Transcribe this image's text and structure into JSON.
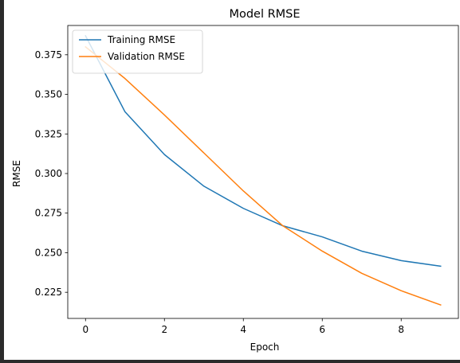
{
  "chart_data": {
    "type": "line",
    "title": "Model RMSE",
    "xlabel": "Epoch",
    "ylabel": "RMSE",
    "x": [
      0,
      1,
      2,
      3,
      4,
      5,
      6,
      7,
      8,
      9
    ],
    "xlim": [
      -0.45,
      9.45
    ],
    "ylim": [
      0.2085,
      0.3935
    ],
    "xticks": [
      0,
      2,
      4,
      6,
      8
    ],
    "yticks": [
      0.225,
      0.25,
      0.275,
      0.3,
      0.325,
      0.35,
      0.375
    ],
    "ytick_labels": [
      "0.225",
      "0.250",
      "0.275",
      "0.300",
      "0.325",
      "0.350",
      "0.375"
    ],
    "grid": false,
    "legend_position": "upper left",
    "series": [
      {
        "name": "Training RMSE",
        "color": "#1f77b4",
        "values": [
          0.387,
          0.339,
          0.312,
          0.292,
          0.278,
          0.267,
          0.26,
          0.251,
          0.245,
          0.2415
        ]
      },
      {
        "name": "Validation RMSE",
        "color": "#ff7f0e",
        "values": [
          0.38,
          0.36,
          0.337,
          0.313,
          0.289,
          0.267,
          0.251,
          0.237,
          0.226,
          0.217
        ]
      }
    ]
  }
}
